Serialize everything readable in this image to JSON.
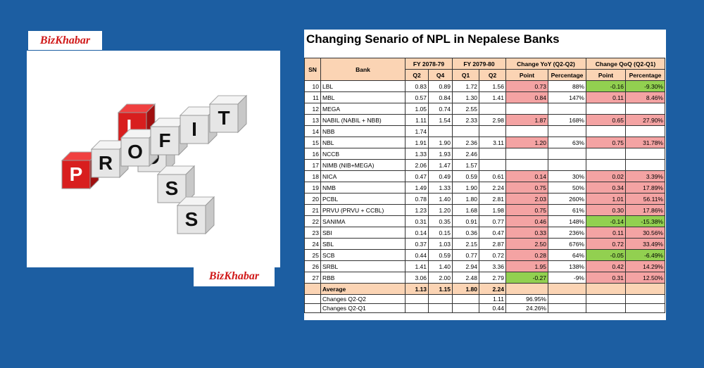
{
  "logo": "BizKhabar",
  "image": {
    "across": [
      "P",
      "R",
      "O",
      "F",
      "I",
      "T"
    ],
    "down": [
      "L",
      "O",
      "S",
      "S"
    ]
  },
  "table": {
    "title": "Changing Senario of NPL in Nepalese Banks",
    "header": {
      "sn": "SN",
      "bank": "Bank",
      "groups": [
        "FY 2078-79",
        "FY 2079-80",
        "Change YoY (Q2-Q2)",
        "Change QoQ (Q2-Q1)"
      ],
      "sub": [
        "Q2",
        "Q4",
        "Q1",
        "Q2",
        "Point",
        "Percentage",
        "Point",
        "Percentage"
      ]
    },
    "rows": [
      [
        "10",
        "LBL",
        "0.83",
        "0.89",
        "1.72",
        "1.56",
        "0.73",
        "88%",
        "-0.16",
        "-9.30%"
      ],
      [
        "11",
        "MBL",
        "0.57",
        "0.84",
        "1.30",
        "1.41",
        "0.84",
        "147%",
        "0.11",
        "8.46%"
      ],
      [
        "12",
        "MEGA",
        "1.05",
        "0.74",
        "2.55",
        null,
        null,
        null,
        null,
        null
      ],
      [
        "13",
        "NABIL (NABIL + NBB)",
        "1.11",
        "1.54",
        "2.33",
        "2.98",
        "1.87",
        "168%",
        "0.65",
        "27.90%"
      ],
      [
        "14",
        "NBB",
        "1.74",
        null,
        null,
        null,
        null,
        null,
        null,
        null
      ],
      [
        "15",
        "NBL",
        "1.91",
        "1.90",
        "2.36",
        "3.11",
        "1.20",
        "63%",
        "0.75",
        "31.78%"
      ],
      [
        "16",
        "NCCB",
        "1.33",
        "1.93",
        "2.46",
        null,
        null,
        null,
        null,
        null
      ],
      [
        "17",
        "NIMB (NIB+MEGA)",
        "2.06",
        "1.47",
        "1.57",
        null,
        null,
        null,
        null,
        null
      ],
      [
        "18",
        "NICA",
        "0.47",
        "0.49",
        "0.59",
        "0.61",
        "0.14",
        "30%",
        "0.02",
        "3.39%"
      ],
      [
        "19",
        "NMB",
        "1.49",
        "1.33",
        "1.90",
        "2.24",
        "0.75",
        "50%",
        "0.34",
        "17.89%"
      ],
      [
        "20",
        "PCBL",
        "0.78",
        "1.40",
        "1.80",
        "2.81",
        "2.03",
        "260%",
        "1.01",
        "56.11%"
      ],
      [
        "21",
        "PRVU (PRVU + CCBL)",
        "1.23",
        "1.20",
        "1.68",
        "1.98",
        "0.75",
        "61%",
        "0.30",
        "17.86%"
      ],
      [
        "22",
        "SANIMA",
        "0.31",
        "0.35",
        "0.91",
        "0.77",
        "0.46",
        "148%",
        "-0.14",
        "-15.38%"
      ],
      [
        "23",
        "SBI",
        "0.14",
        "0.15",
        "0.36",
        "0.47",
        "0.33",
        "236%",
        "0.11",
        "30.56%"
      ],
      [
        "24",
        "SBL",
        "0.37",
        "1.03",
        "2.15",
        "2.87",
        "2.50",
        "676%",
        "0.72",
        "33.49%"
      ],
      [
        "25",
        "SCB",
        "0.44",
        "0.59",
        "0.77",
        "0.72",
        "0.28",
        "64%",
        "-0.05",
        "-6.49%"
      ],
      [
        "26",
        "SRBL",
        "1.41",
        "1.40",
        "2.94",
        "3.36",
        "1.95",
        "138%",
        "0.42",
        "14.29%"
      ],
      [
        "27",
        "RBB",
        "3.06",
        "2.00",
        "2.48",
        "2.79",
        "-0.27",
        "-9%",
        "0.31",
        "12.50%"
      ]
    ],
    "footer": [
      [
        null,
        "Average",
        "1.13",
        "1.15",
        "1.80",
        "2.24",
        null,
        null,
        null,
        null
      ],
      [
        null,
        "Changes Q2-Q2",
        null,
        null,
        null,
        "1.11",
        "96.95%",
        null,
        null,
        null
      ],
      [
        null,
        "Changes Q2-Q1",
        null,
        null,
        null,
        "0.44",
        "24.26%",
        null,
        null,
        null
      ]
    ],
    "highlight": {
      "positive": "#f4a3a3",
      "negative": "#92d050"
    }
  }
}
